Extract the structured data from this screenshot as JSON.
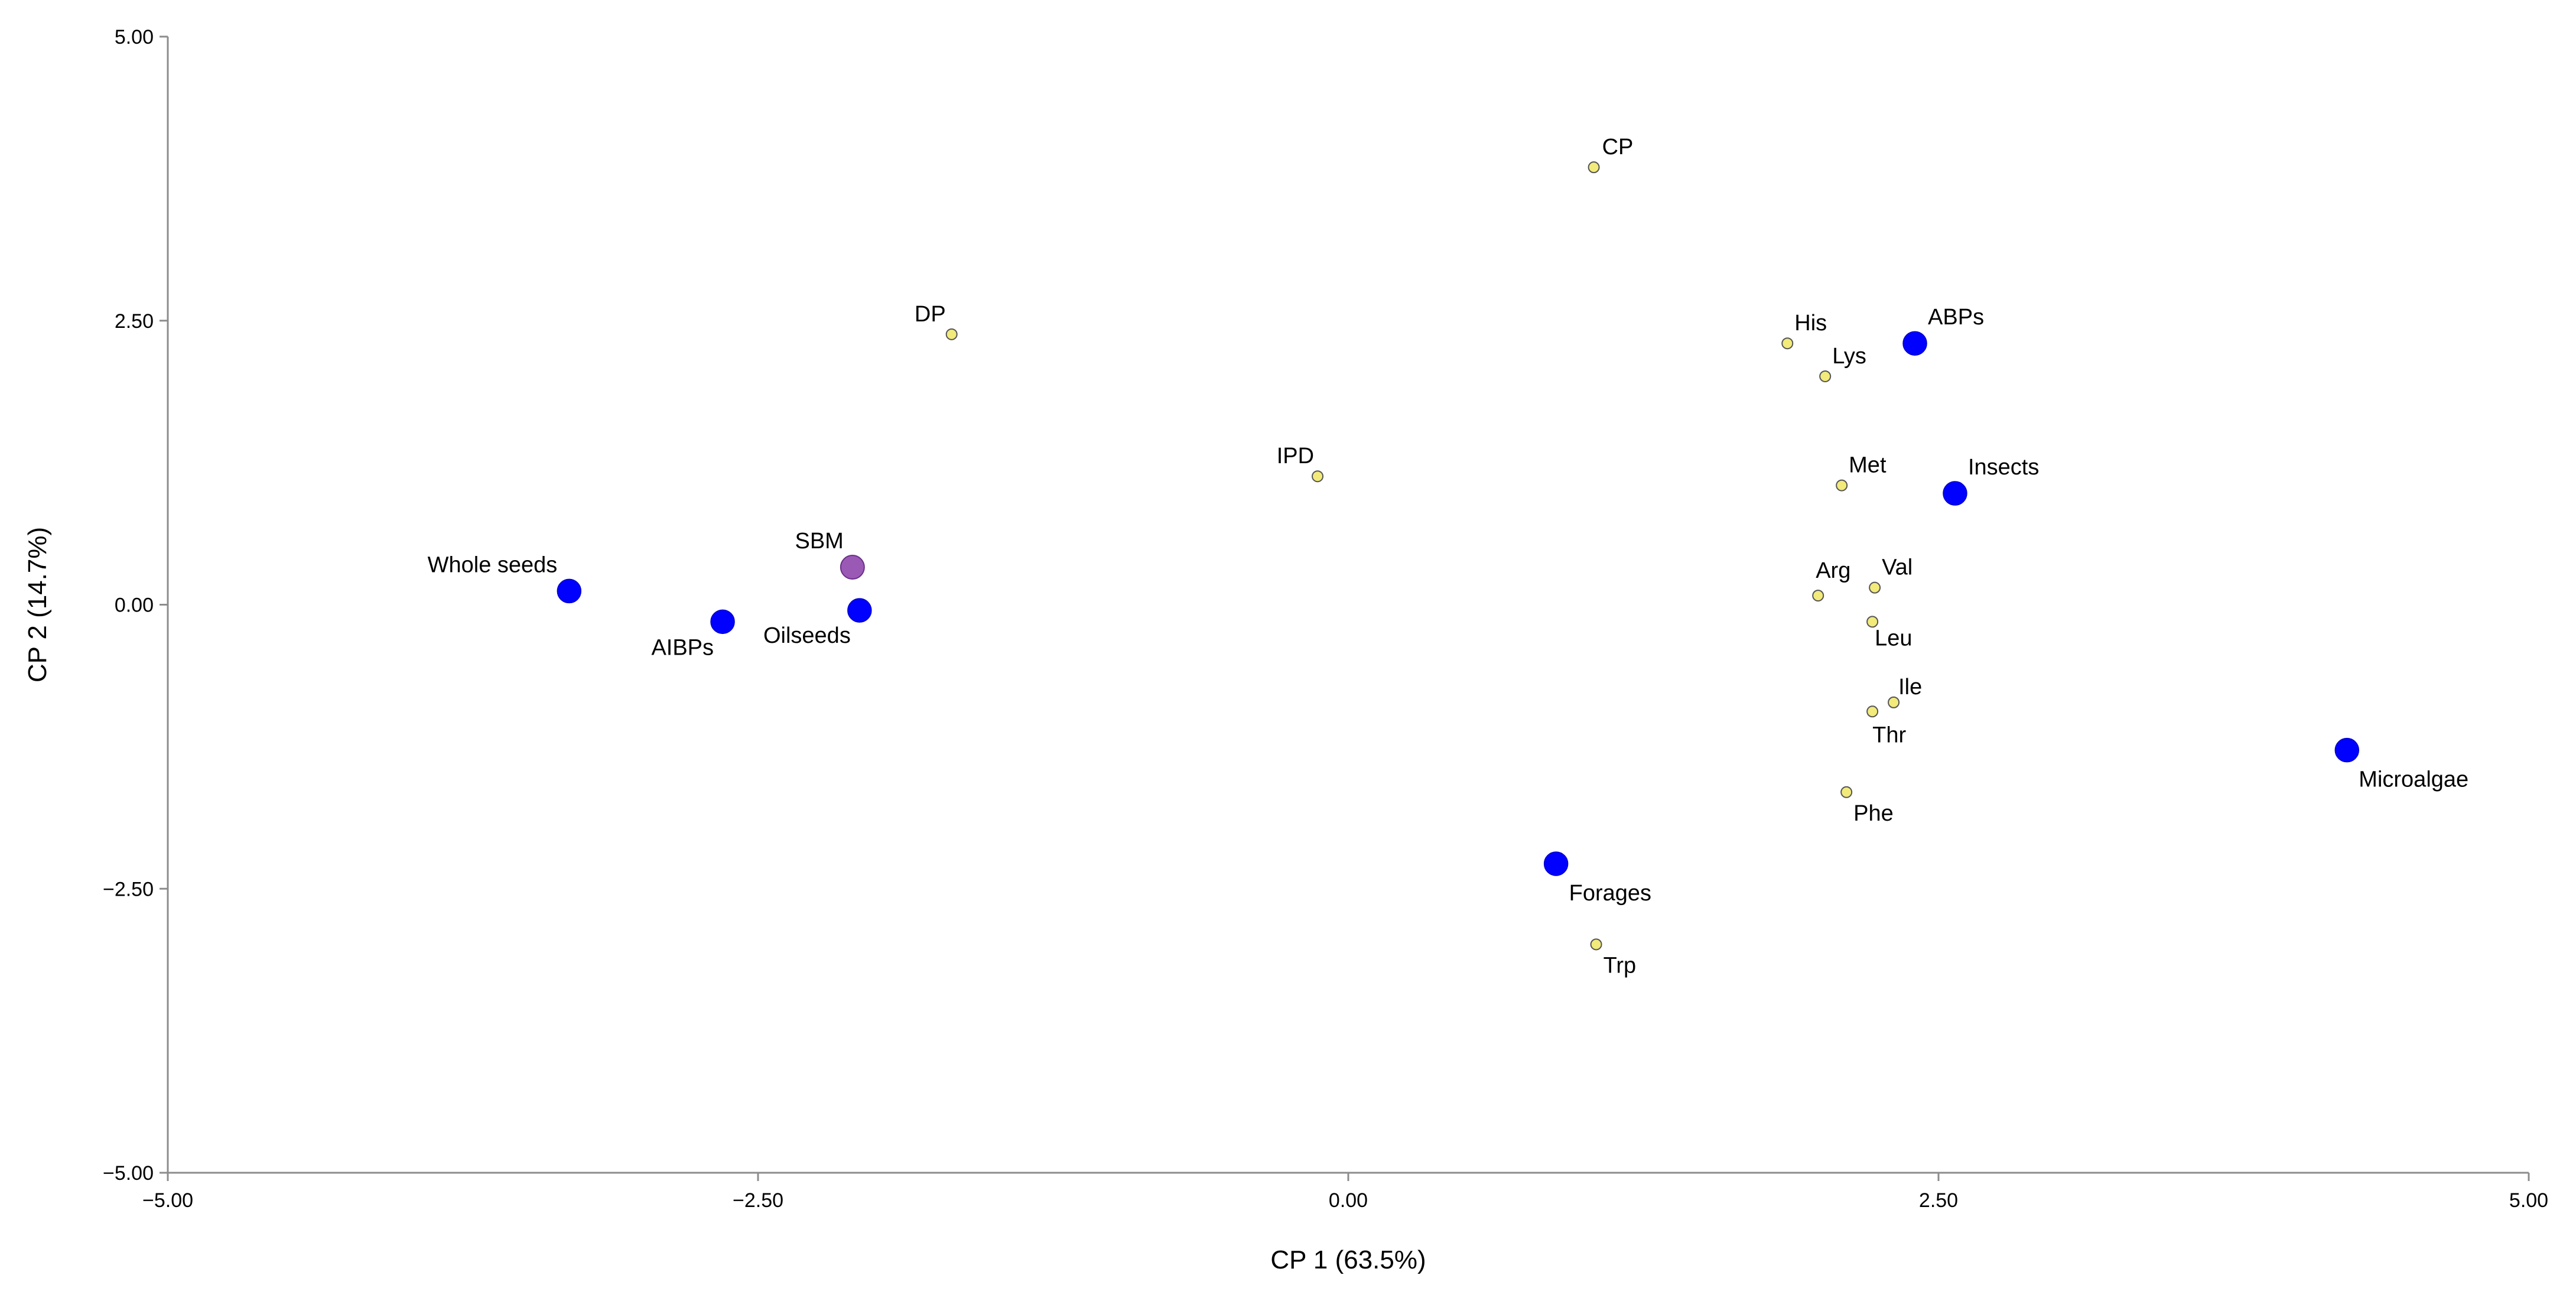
{
  "chart_data": {
    "type": "scatter",
    "xlabel": "CP 1 (63.5%)",
    "ylabel": "CP 2 (14.7%)",
    "xlim": [
      -5,
      5
    ],
    "ylim": [
      -5,
      5
    ],
    "x_ticks": [
      "−5.00",
      "−2.50",
      "0.00",
      "2.50",
      "5.00"
    ],
    "y_ticks": [
      "5.00",
      "2.50",
      "0.00",
      "−2.50",
      "−5.00"
    ],
    "grid": false,
    "legend": "none",
    "colors": {
      "groups": "#0000ff",
      "reference": "#9b59b6",
      "variables": "#f2ea7a",
      "variable_stroke": "#555555"
    },
    "series": [
      {
        "kind": "groups",
        "points": [
          {
            "label": "Whole seeds",
            "x": -3.3,
            "y": 0.12
          },
          {
            "label": "AIBPs",
            "x": -2.65,
            "y": -0.15
          },
          {
            "label": "Oilseeds",
            "x": -2.07,
            "y": -0.05
          },
          {
            "label": "ABPs",
            "x": 2.4,
            "y": 2.3
          },
          {
            "label": "Insects",
            "x": 2.57,
            "y": 0.98
          },
          {
            "label": "Microalgae",
            "x": 4.23,
            "y": -1.28
          },
          {
            "label": "Forages",
            "x": 0.88,
            "y": -2.28
          }
        ]
      },
      {
        "kind": "reference",
        "points": [
          {
            "label": "SBM",
            "x": -2.1,
            "y": 0.33
          }
        ]
      },
      {
        "kind": "variables",
        "points": [
          {
            "label": "CP",
            "x": 1.04,
            "y": 3.85
          },
          {
            "label": "DP",
            "x": -1.68,
            "y": 2.38
          },
          {
            "label": "IPD",
            "x": -0.13,
            "y": 1.13
          },
          {
            "label": "His",
            "x": 1.86,
            "y": 2.3
          },
          {
            "label": "Lys",
            "x": 2.02,
            "y": 2.01
          },
          {
            "label": "Met",
            "x": 2.09,
            "y": 1.05
          },
          {
            "label": "Arg",
            "x": 1.99,
            "y": 0.08
          },
          {
            "label": "Val",
            "x": 2.23,
            "y": 0.15
          },
          {
            "label": "Leu",
            "x": 2.22,
            "y": -0.15
          },
          {
            "label": "Ile",
            "x": 2.31,
            "y": -0.86
          },
          {
            "label": "Thr",
            "x": 2.22,
            "y": -0.94
          },
          {
            "label": "Phe",
            "x": 2.11,
            "y": -1.65
          },
          {
            "label": "Trp",
            "x": 1.05,
            "y": -2.99
          }
        ]
      }
    ]
  }
}
